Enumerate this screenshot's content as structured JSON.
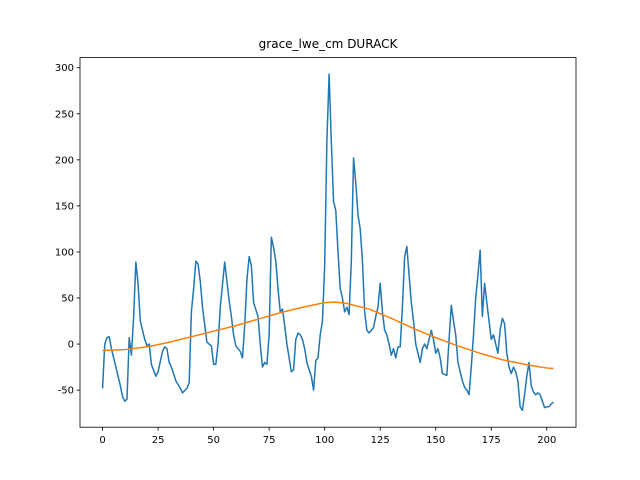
{
  "chart_data": {
    "type": "line",
    "title": "grace_lwe_cm DURACK",
    "xlim": [
      -10.15,
      213.15
    ],
    "ylim": [
      -90.25,
      311
    ],
    "xticks": [
      0,
      25,
      50,
      75,
      100,
      125,
      150,
      175,
      200
    ],
    "yticks": [
      -50,
      0,
      50,
      100,
      150,
      200,
      250,
      300
    ],
    "series": [
      {
        "color": "#1f77b4",
        "x": [
          0,
          1,
          2,
          3,
          4,
          6,
          8,
          9,
          10,
          11,
          12,
          13,
          14,
          15,
          16,
          17,
          19,
          20,
          21,
          22,
          24,
          25,
          27,
          28,
          29,
          30,
          31,
          33,
          35,
          36,
          38,
          39,
          40,
          41,
          42,
          43,
          44,
          45,
          47,
          48,
          49,
          50,
          51,
          52,
          53,
          55,
          56,
          57,
          58,
          59,
          60,
          62,
          63,
          64,
          65,
          66,
          67,
          68,
          70,
          71,
          72,
          73,
          74,
          75,
          76,
          77,
          78,
          79,
          80,
          81,
          82,
          83,
          85,
          86,
          87,
          88,
          89,
          90,
          91,
          92,
          93,
          94,
          95,
          96,
          97,
          98,
          99,
          100,
          101,
          102,
          103,
          104,
          105,
          106,
          107,
          108,
          109,
          110,
          111,
          112,
          113,
          114,
          115,
          116,
          117,
          118,
          119,
          120,
          121,
          122,
          123,
          124,
          125,
          126,
          127,
          128,
          129,
          130,
          131,
          132,
          133,
          134,
          135,
          136,
          137,
          138,
          139,
          140,
          141,
          142,
          143,
          144,
          145,
          146,
          147,
          148,
          149,
          150,
          151,
          152,
          153,
          154,
          155,
          156,
          157,
          158,
          159,
          160,
          161,
          162,
          163,
          164,
          165,
          166,
          167,
          168,
          169,
          170,
          171,
          172,
          173,
          174,
          175,
          176,
          177,
          178,
          179,
          180,
          181,
          182,
          183,
          184,
          185,
          186,
          187,
          188,
          189,
          190,
          191,
          192,
          193,
          194,
          195,
          196,
          197,
          198,
          199,
          200,
          201,
          202,
          203
        ],
        "values": [
          -48,
          0,
          7,
          8,
          -5,
          -25,
          -45,
          -57,
          -62,
          -60,
          7,
          -12,
          30,
          89,
          65,
          25,
          5,
          -2,
          0,
          -22,
          -35,
          -30,
          -8,
          -3,
          -5,
          -20,
          -25,
          -40,
          -48,
          -53,
          -48,
          -42,
          35,
          60,
          90,
          87,
          68,
          40,
          2,
          0,
          -2,
          -22,
          -22,
          0,
          40,
          89,
          68,
          47,
          30,
          10,
          -2,
          -8,
          -15,
          20,
          70,
          95,
          85,
          45,
          30,
          0,
          -25,
          -20,
          -22,
          10,
          116,
          105,
          90,
          60,
          35,
          38,
          20,
          0,
          -30,
          -28,
          5,
          12,
          10,
          5,
          -5,
          -20,
          -28,
          -35,
          -50,
          -18,
          -15,
          10,
          25,
          85,
          220,
          293,
          220,
          155,
          145,
          100,
          60,
          50,
          35,
          40,
          32,
          90,
          202,
          175,
          140,
          125,
          90,
          35,
          15,
          12,
          15,
          18,
          30,
          40,
          66,
          35,
          15,
          10,
          0,
          -12,
          -5,
          -15,
          -3,
          -3,
          40,
          95,
          106,
          75,
          45,
          25,
          0,
          -10,
          -20,
          -5,
          0,
          -5,
          5,
          15,
          5,
          -10,
          -5,
          -15,
          -32,
          -33,
          -34,
          5,
          42,
          25,
          10,
          -20,
          -30,
          -40,
          -47,
          -50,
          -55,
          -25,
          10,
          50,
          75,
          102,
          30,
          66,
          45,
          25,
          5,
          10,
          0,
          -10,
          15,
          28,
          22,
          -10,
          -25,
          -32,
          -25,
          -30,
          -40,
          -68,
          -72,
          -55,
          -35,
          -20,
          -45,
          -52,
          -55,
          -53,
          -55,
          -62,
          -69,
          -68,
          -68,
          -65,
          -63
        ]
      },
      {
        "color": "#ff7f0e",
        "x": [
          0,
          10,
          20,
          30,
          40,
          50,
          60,
          70,
          80,
          90,
          100,
          105,
          110,
          120,
          130,
          140,
          150,
          160,
          170,
          180,
          190,
          200,
          203
        ],
        "values": [
          -7,
          -6,
          -3,
          2,
          8,
          14,
          20,
          27,
          34,
          40,
          45,
          45.5,
          44,
          38,
          28,
          17,
          7,
          -2,
          -10,
          -17,
          -22,
          -26,
          -26.5
        ]
      }
    ]
  }
}
